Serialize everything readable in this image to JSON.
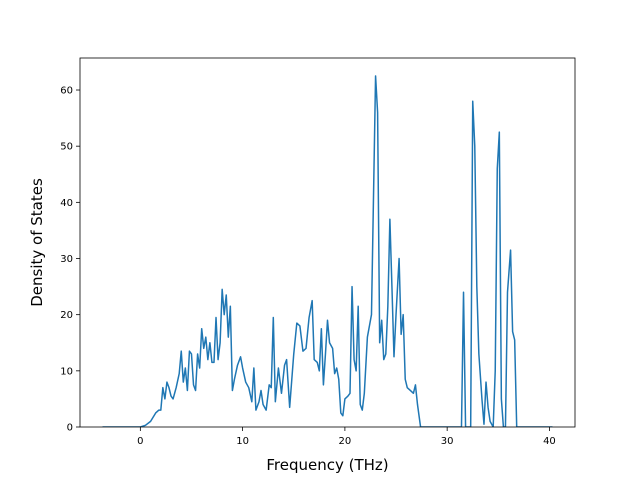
{
  "chart_data": {
    "type": "line",
    "xlabel": "Frequency (THz)",
    "ylabel": "Density of States",
    "color": "#1f77b4",
    "x": [
      -3.7,
      0,
      0.5,
      1,
      1.5,
      1.8,
      2,
      2.2,
      2.4,
      2.6,
      2.8,
      3,
      3.2,
      3.5,
      3.8,
      4,
      4.2,
      4.4,
      4.6,
      4.8,
      5,
      5.2,
      5.4,
      5.6,
      5.8,
      6,
      6.2,
      6.4,
      6.6,
      6.8,
      7,
      7.2,
      7.4,
      7.6,
      7.8,
      8,
      8.2,
      8.4,
      8.6,
      8.8,
      9,
      9.2,
      9.5,
      9.8,
      10,
      10.3,
      10.6,
      10.9,
      11.1,
      11.3,
      11.6,
      11.8,
      12,
      12.3,
      12.6,
      12.8,
      13,
      13.2,
      13.5,
      13.8,
      14.1,
      14.3,
      14.6,
      15,
      15.3,
      15.6,
      15.9,
      16.2,
      16.5,
      16.8,
      17,
      17.3,
      17.5,
      17.7,
      17.9,
      18.1,
      18.3,
      18.5,
      18.8,
      19,
      19.2,
      19.4,
      19.6,
      19.8,
      20,
      20.3,
      20.5,
      20.7,
      20.9,
      21.1,
      21.3,
      21.5,
      21.7,
      21.9,
      22.2,
      22.6,
      23.0,
      23.2,
      23.4,
      23.6,
      23.8,
      24.0,
      24.2,
      24.4,
      24.6,
      24.8,
      25.0,
      25.3,
      25.5,
      25.7,
      25.9,
      26.1,
      26.4,
      26.7,
      26.9,
      27.1,
      27.4,
      31.4,
      31.6,
      31.8,
      32.3,
      32.5,
      32.7,
      32.9,
      33.1,
      33.4,
      33.6,
      33.8,
      34,
      34.2,
      34.5,
      34.7,
      34.9,
      35.1,
      35.3,
      35.5,
      35.7,
      35.9,
      36.2,
      36.4,
      36.6,
      36.8,
      40.3
    ],
    "values": [
      0,
      0,
      0.3,
      1,
      2.5,
      3,
      3,
      7,
      5,
      8,
      7,
      5.5,
      5,
      7,
      9.5,
      13.5,
      8,
      10.5,
      6.5,
      13.5,
      13,
      7.5,
      6.5,
      13,
      10.5,
      17.5,
      14,
      16,
      12,
      15,
      11.5,
      11.5,
      19.5,
      12,
      15,
      24.5,
      20,
      23.5,
      16,
      21.5,
      6.5,
      8.5,
      11,
      12.5,
      10.5,
      8,
      7,
      4.5,
      10.5,
      3,
      4.5,
      6.5,
      4,
      3,
      7.5,
      7,
      19.5,
      4.5,
      10.5,
      6,
      11,
      12,
      3.5,
      13,
      18.5,
      18,
      13.5,
      14,
      19.5,
      22.5,
      12,
      11.5,
      10,
      17.5,
      7.5,
      13,
      19,
      15,
      14,
      9.5,
      10.5,
      8.5,
      2.5,
      2,
      5,
      5.5,
      6,
      25,
      12,
      10,
      21.5,
      4,
      3,
      6,
      16,
      20,
      62.5,
      56,
      15,
      19,
      12,
      13,
      21.5,
      37,
      25,
      12.5,
      20,
      30,
      16.5,
      20,
      8.5,
      7,
      6.5,
      6,
      7.5,
      4,
      0,
      0,
      24,
      0,
      0,
      58,
      50,
      25,
      13,
      5,
      0.5,
      8,
      3.5,
      1,
      0,
      10,
      46,
      52.5,
      5,
      0,
      0,
      24,
      31.5,
      17,
      15.5,
      0,
      0
    ],
    "xlim": [
      -5.9,
      42.5
    ],
    "ylim": [
      0,
      65.7
    ],
    "xticks": [
      0,
      10,
      20,
      30,
      40
    ],
    "yticks": [
      0,
      10,
      20,
      30,
      40,
      50,
      60
    ]
  }
}
